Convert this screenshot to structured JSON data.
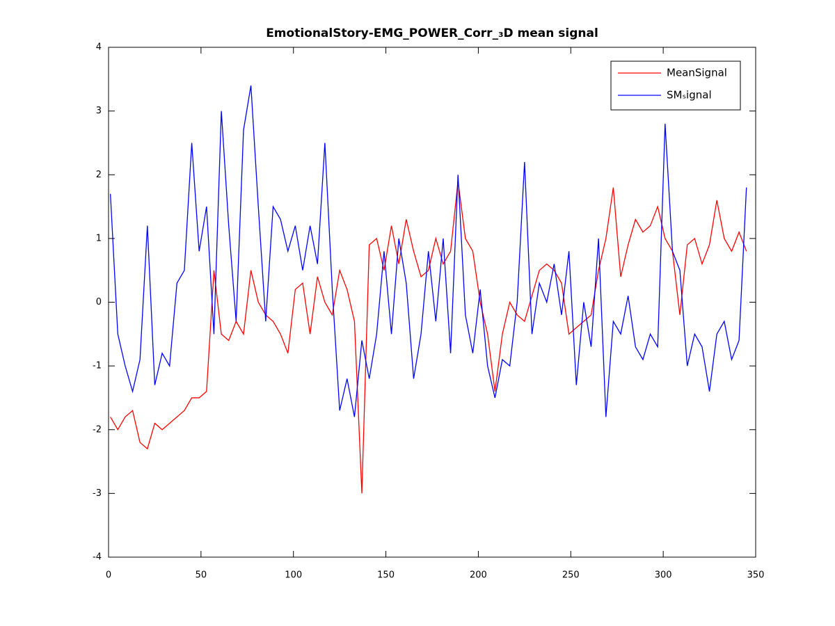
{
  "chart_data": {
    "type": "line",
    "title": "EmotionalStory-EMG_POWER_Corr_₃D mean signal",
    "x": [
      1,
      5,
      9,
      13,
      17,
      21,
      25,
      29,
      33,
      37,
      41,
      45,
      49,
      53,
      57,
      61,
      65,
      69,
      73,
      77,
      81,
      85,
      89,
      93,
      97,
      101,
      105,
      109,
      113,
      117,
      121,
      125,
      129,
      133,
      137,
      141,
      145,
      149,
      153,
      157,
      161,
      165,
      169,
      173,
      177,
      181,
      185,
      189,
      193,
      197,
      201,
      205,
      209,
      213,
      217,
      221,
      225,
      229,
      233,
      237,
      241,
      245,
      249,
      253,
      257,
      261,
      265,
      269,
      273,
      277,
      281,
      285,
      289,
      293,
      297,
      301,
      305,
      309,
      313,
      317,
      321,
      325,
      329,
      333,
      337,
      341,
      345
    ],
    "series": [
      {
        "name": "MeanSignal",
        "color": "#ff0000",
        "values": [
          -1.8,
          -2.0,
          -1.8,
          -1.7,
          -2.2,
          -2.3,
          -1.9,
          -2.0,
          -1.9,
          -1.8,
          -1.7,
          -1.5,
          -1.5,
          -1.4,
          0.5,
          -0.5,
          -0.6,
          -0.3,
          -0.5,
          0.5,
          0.0,
          -0.2,
          -0.3,
          -0.5,
          -0.8,
          0.2,
          0.3,
          -0.5,
          0.4,
          0.0,
          -0.2,
          0.5,
          0.2,
          -0.3,
          -3.0,
          0.9,
          1.0,
          0.5,
          1.2,
          0.6,
          1.3,
          0.8,
          0.4,
          0.5,
          1.0,
          0.6,
          0.8,
          1.9,
          1.0,
          0.8,
          0.0,
          -0.5,
          -1.4,
          -0.5,
          0.0,
          -0.2,
          -0.3,
          0.1,
          0.5,
          0.6,
          0.5,
          0.3,
          -0.5,
          -0.4,
          -0.3,
          -0.2,
          0.5,
          1.0,
          1.8,
          0.4,
          0.9,
          1.3,
          1.1,
          1.2,
          1.5,
          1.0,
          0.8,
          -0.2,
          0.9,
          1.0,
          0.6,
          0.9,
          1.6,
          1.0,
          0.8,
          1.1,
          0.8
        ]
      },
      {
        "name": "SMₛignal",
        "color": "#0000ff",
        "values": [
          1.7,
          -0.5,
          -1.0,
          -1.4,
          -0.9,
          1.2,
          -1.3,
          -0.8,
          -1.0,
          0.3,
          0.5,
          2.5,
          0.8,
          1.5,
          -0.5,
          3.0,
          1.2,
          -0.3,
          2.7,
          3.4,
          1.5,
          -0.3,
          1.5,
          1.3,
          0.8,
          1.2,
          0.5,
          1.2,
          0.6,
          2.5,
          0.2,
          -1.7,
          -1.2,
          -1.8,
          -0.6,
          -1.2,
          -0.5,
          0.8,
          -0.5,
          1.0,
          0.3,
          -1.2,
          -0.5,
          0.8,
          -0.3,
          1.0,
          -0.8,
          2.0,
          -0.2,
          -0.8,
          0.2,
          -1.0,
          -1.5,
          -0.9,
          -1.0,
          0.0,
          2.2,
          -0.5,
          0.3,
          0.0,
          0.6,
          -0.2,
          0.8,
          -1.3,
          0.0,
          -0.7,
          1.0,
          -1.8,
          -0.3,
          -0.5,
          0.1,
          -0.7,
          -0.9,
          -0.5,
          -0.7,
          2.8,
          0.8,
          0.5,
          -1.0,
          -0.5,
          -0.7,
          -1.4,
          -0.5,
          -0.3,
          -0.9,
          -0.6,
          1.8
        ]
      }
    ],
    "xlim": [
      0,
      350
    ],
    "xticks": [
      0,
      50,
      100,
      150,
      200,
      250,
      300,
      350
    ],
    "ylim": [
      -4,
      4
    ],
    "yticks": [
      -4,
      -3,
      -2,
      -1,
      0,
      1,
      2,
      3,
      4
    ],
    "legend": "top-right"
  }
}
